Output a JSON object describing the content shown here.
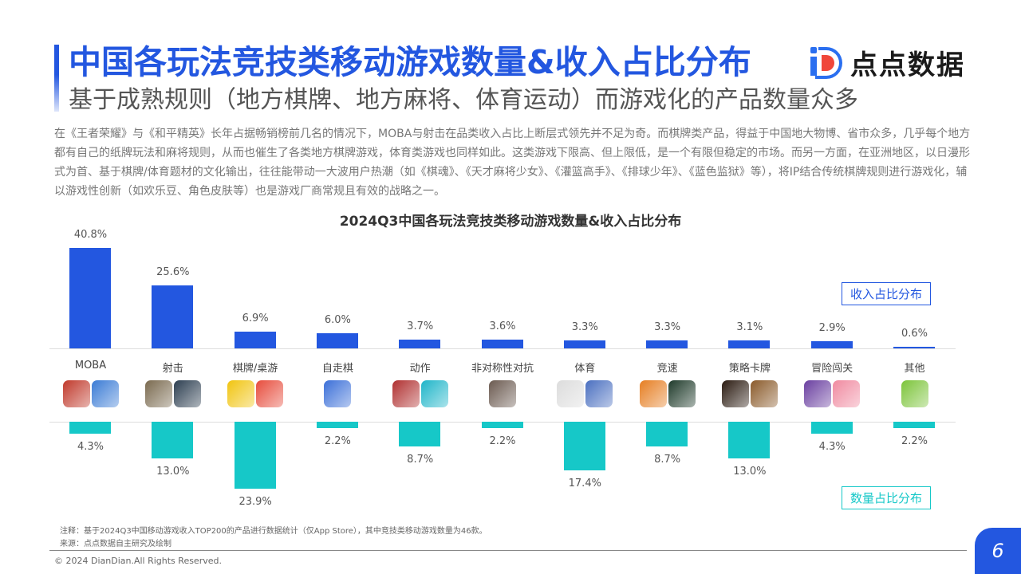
{
  "header": {
    "title": "中国各玩法竞技类移动游戏数量&收入占比分布",
    "subtitle": "基于成熟规则（地方棋牌、地方麻将、体育运动）而游戏化的产品数量众多",
    "logo_text": "点点数据",
    "logo_icon": "diandian-logo-icon",
    "accent_color": "#2357e0"
  },
  "description": "在《王者荣耀》与《和平精英》长年占据畅销榜前几名的情况下，MOBA与射击在品类收入占比上断层式领先并不足为奇。而棋牌类产品，得益于中国地大物博、省市众多，几乎每个地方都有自己的纸牌玩法和麻将规则，从而也催生了各类地方棋牌游戏，体育类游戏也同样如此。这类游戏下限高、但上限低，是一个有限但稳定的市场。而另一方面，在亚洲地区，以日漫形式为首、基于棋牌/体育题材的文化输出，往往能带动一大波用户热潮（如《棋魂》、《天才麻将少女》、《灌篮高手》、《排球少年》、《蓝色监狱》等），将IP结合传统棋牌规则进行游戏化，辅以游戏性创新（如欢乐豆、角色皮肤等）也是游戏厂商常规且有效的战略之一。",
  "chart_data": {
    "type": "bar",
    "title": "2024Q3中国各玩法竞技类移动游戏数量&收入占比分布",
    "categories": [
      "MOBA",
      "射击",
      "棋牌/桌游",
      "自走棋",
      "动作",
      "非对称性对抗",
      "体育",
      "竞速",
      "策略卡牌",
      "冒险闯关",
      "其他"
    ],
    "series": [
      {
        "name": "收入占比分布",
        "color": "#2357e0",
        "direction": "up",
        "values": [
          40.8,
          25.6,
          6.9,
          6.0,
          3.7,
          3.6,
          3.3,
          3.3,
          3.1,
          2.9,
          0.6
        ],
        "labels": [
          "40.8%",
          "25.6%",
          "6.9%",
          "6.0%",
          "3.7%",
          "3.6%",
          "3.3%",
          "3.3%",
          "3.1%",
          "2.9%",
          "0.6%"
        ]
      },
      {
        "name": "数量占比分布",
        "color": "#16c8c8",
        "direction": "down",
        "values": [
          4.3,
          13.0,
          23.9,
          2.2,
          8.7,
          2.2,
          17.4,
          8.7,
          13.0,
          4.3,
          2.2
        ],
        "labels": [
          "4.3%",
          "13.0%",
          "23.9%",
          "2.2%",
          "8.7%",
          "2.2%",
          "17.4%",
          "8.7%",
          "13.0%",
          "4.3%",
          "2.2%"
        ]
      }
    ],
    "app_icons_per_category": [
      2,
      2,
      2,
      1,
      2,
      1,
      2,
      2,
      2,
      2,
      1
    ],
    "grid": false,
    "legend_position": "right (revenue top, count bottom)"
  },
  "legend": {
    "revenue": "收入占比分布",
    "count": "数量占比分布"
  },
  "notes": {
    "note": "注释：基于2024Q3中国移动游戏收入TOP200的产品进行数据统计（仅App Store），其中竞技类移动游戏数量为46款。",
    "source": "来源：点点数据自主研究及绘制"
  },
  "footer": {
    "copyright": "© 2024 DianDian.All Rights Reserved.",
    "page_number": "6"
  }
}
